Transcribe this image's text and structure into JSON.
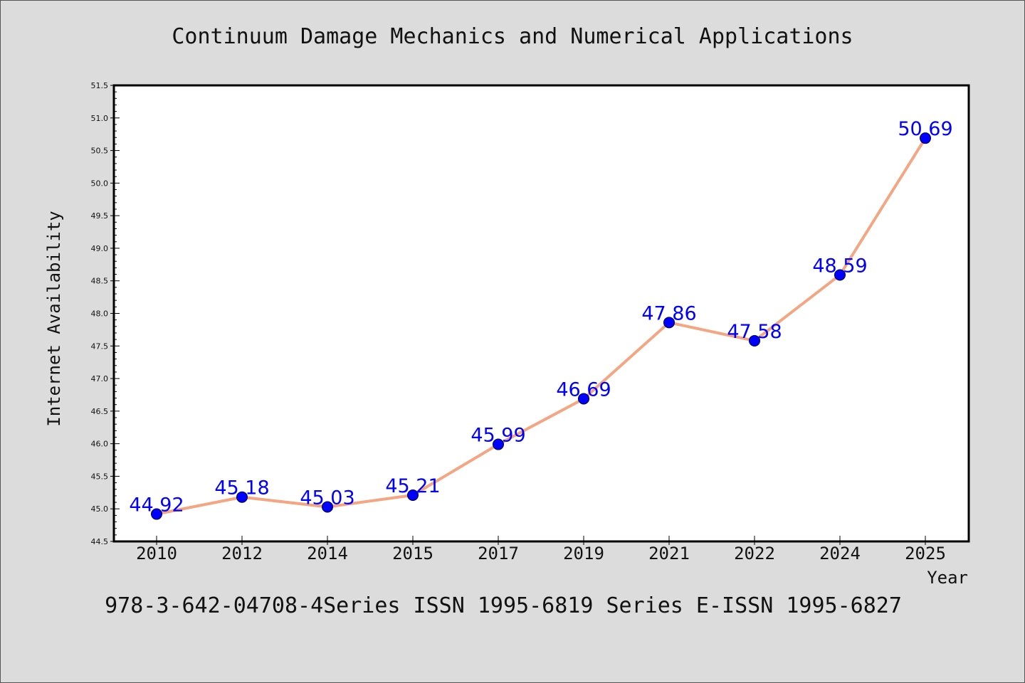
{
  "title": "Continuum Damage Mechanics and Numerical Applications",
  "footer": "978-3-642-04708-4Series ISSN 1995-6819 Series E-ISSN 1995-6827",
  "colors": {
    "background": "#dcdcdc",
    "plot_background": "#ffffff",
    "line": "#f4a582",
    "marker": "#0000ff",
    "label": "#0000ff",
    "axis": "#000000"
  },
  "chart_data": {
    "type": "line",
    "categories": [
      "2010",
      "2012",
      "2014",
      "2015",
      "2017",
      "2019",
      "2021",
      "2022",
      "2024",
      "2025"
    ],
    "series": [
      {
        "values": [
          44.92,
          45.18,
          45.03,
          45.21,
          45.99,
          46.69,
          47.86,
          47.58,
          48.59,
          50.69
        ],
        "data_labels": [
          "44.92",
          "45.18",
          "45.03",
          "45.21",
          "45.99",
          "46.69",
          "47.86",
          "47.58",
          "48.59",
          "50.69"
        ]
      }
    ],
    "xlabel": "Year",
    "ylabel": "Internet Availability",
    "ylim": [
      44.5,
      51.5
    ],
    "yticks": [
      "44.5",
      "45.0",
      "45.5",
      "46.0",
      "46.5",
      "47.0",
      "47.5",
      "48.0",
      "48.5",
      "49.0",
      "49.5",
      "50.0",
      "50.5",
      "51.0",
      "51.5"
    ],
    "grid": false,
    "legend": "none"
  }
}
